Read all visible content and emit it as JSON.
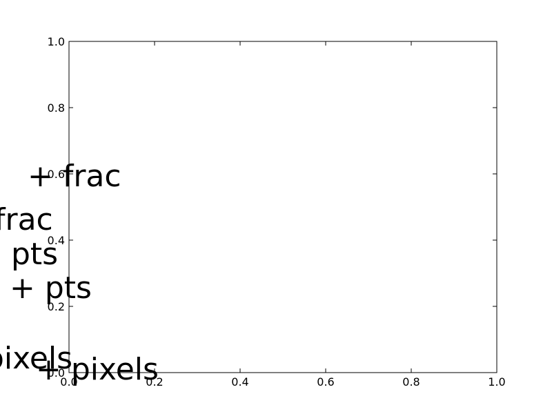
{
  "chart_data": {
    "type": "scatter",
    "title": "",
    "xlabel": "",
    "ylabel": "",
    "xlim": [
      0,
      1
    ],
    "ylim": [
      0,
      1
    ],
    "x_ticks": [
      0.0,
      0.2,
      0.4,
      0.6,
      0.8,
      1.0
    ],
    "y_ticks": [
      0.0,
      0.2,
      0.4,
      0.6,
      0.8,
      1.0
    ],
    "x_tick_labels": [
      "0.0",
      "0.2",
      "0.4",
      "0.6",
      "0.8",
      "1.0"
    ],
    "y_tick_labels": [
      "0.0",
      "0.2",
      "0.4",
      "0.6",
      "0.8",
      "1.0"
    ],
    "grid": false,
    "series": [],
    "annotations": [
      {
        "text": "+ frac"
      },
      {
        "text": "frac"
      },
      {
        "text": "pts"
      },
      {
        "text": "+ pts"
      },
      {
        "text": "pixels"
      },
      {
        "text": "+ pixels"
      }
    ]
  }
}
